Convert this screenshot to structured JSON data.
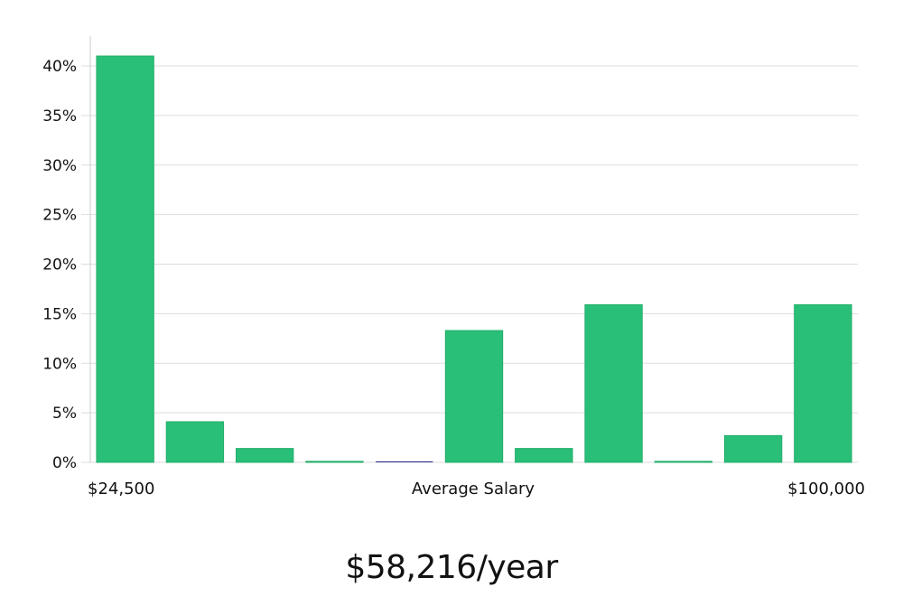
{
  "chart_data": {
    "type": "bar",
    "title": "",
    "xlabel": "Average Salary",
    "ylabel": "",
    "x_range_labels": {
      "min": "$24,500",
      "max": "$100,000"
    },
    "values": [
      41,
      4.1,
      1.4,
      0.1,
      0.1,
      13.3,
      1.4,
      15.9,
      0.1,
      2.7,
      15.9
    ],
    "ylim": [
      0,
      43
    ],
    "yticks": [
      0,
      5,
      10,
      15,
      20,
      25,
      30,
      35,
      40
    ],
    "ytick_labels": [
      "0%",
      "5%",
      "10%",
      "15%",
      "20%",
      "25%",
      "30%",
      "35%",
      "40%"
    ],
    "grid": true,
    "colors": {
      "bar": "#2abf78",
      "bar_edge": "#22ad6a",
      "special_bar": "#2f2f8f",
      "grid": "#dddddd",
      "axis": "#cccccc"
    },
    "special_bar_index": 4
  },
  "summary": {
    "text": "$58,216/year"
  }
}
